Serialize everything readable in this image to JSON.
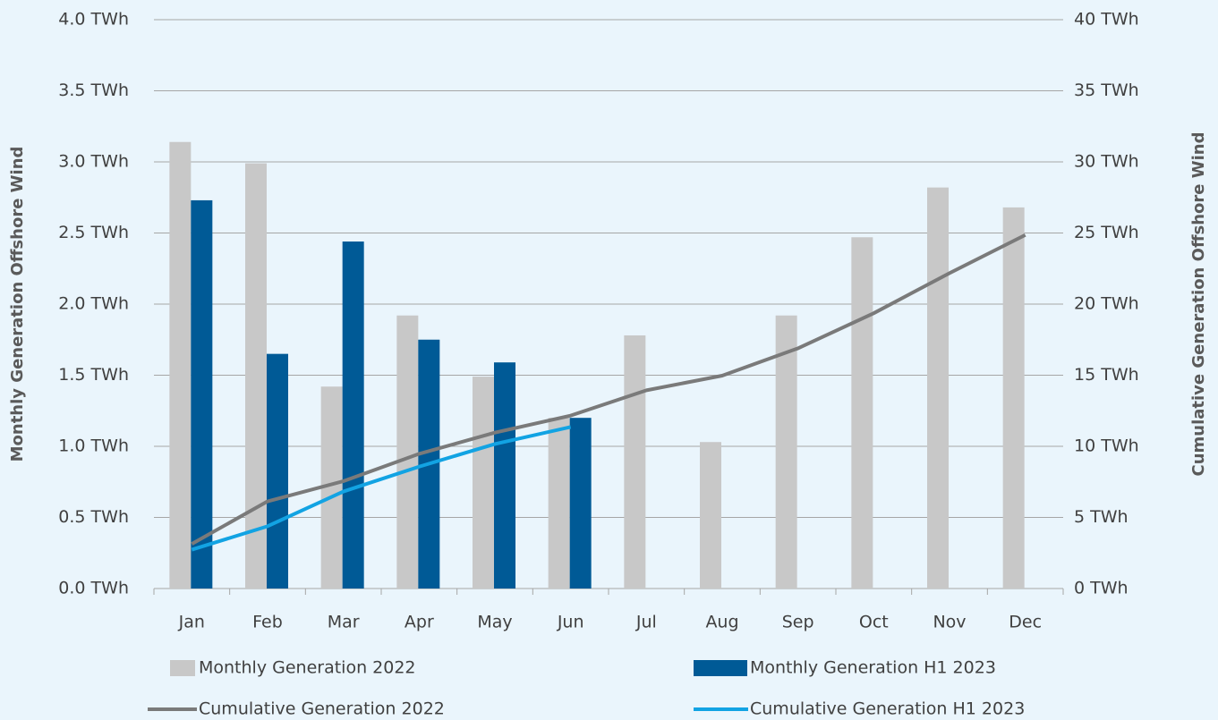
{
  "chart_data": {
    "type": "combo",
    "categories": [
      "Jan",
      "Feb",
      "Mar",
      "Apr",
      "May",
      "Jun",
      "Jul",
      "Aug",
      "Sep",
      "Oct",
      "Nov",
      "Dec"
    ],
    "ylabel": "Monthly Generation Offshore Wind",
    "y2label": "Cumulative Generation Offshore Wind",
    "ylim": [
      0,
      4
    ],
    "yticks": [
      {
        "value": 0,
        "label": "0.0 TWh"
      },
      {
        "value": 0.5,
        "label": "0.5 TWh"
      },
      {
        "value": 1,
        "label": "1.0 TWh"
      },
      {
        "value": 1.5,
        "label": "1.5 TWh"
      },
      {
        "value": 2,
        "label": "2.0 TWh"
      },
      {
        "value": 2.5,
        "label": "2.5 TWh"
      },
      {
        "value": 3,
        "label": "3.0 TWh"
      },
      {
        "value": 3.5,
        "label": "3.5 TWh"
      },
      {
        "value": 4,
        "label": "4.0 TWh"
      }
    ],
    "y2lim": [
      0,
      40
    ],
    "y2ticks": [
      {
        "value": 0,
        "label": "0 TWh"
      },
      {
        "value": 5,
        "label": "5 TWh"
      },
      {
        "value": 10,
        "label": "10 TWh"
      },
      {
        "value": 15,
        "label": "15 TWh"
      },
      {
        "value": 20,
        "label": "20 TWh"
      },
      {
        "value": 25,
        "label": "25 TWh"
      },
      {
        "value": 30,
        "label": "30 TWh"
      },
      {
        "value": 35,
        "label": "35 TWh"
      },
      {
        "value": 40,
        "label": "40 TWh"
      }
    ],
    "grid": true,
    "legend": "bottom",
    "series": [
      {
        "name": "Monthly Generation 2022",
        "type": "bar",
        "color": "#c8c8c8",
        "values": [
          3.14,
          2.99,
          1.42,
          1.92,
          1.49,
          1.2,
          1.78,
          1.03,
          1.92,
          2.47,
          2.82,
          2.68
        ]
      },
      {
        "name": "Monthly Generation H1 2023",
        "type": "bar",
        "color": "#005a96",
        "values": [
          2.73,
          1.65,
          2.44,
          1.75,
          1.59,
          1.2,
          null,
          null,
          null,
          null,
          null,
          null
        ]
      },
      {
        "name": "Cumulative Generation 2022",
        "type": "line",
        "axis": "y2",
        "color": "#7a7a7a",
        "values": [
          3.14,
          6.13,
          7.55,
          9.47,
          10.96,
          12.16,
          13.94,
          14.97,
          16.89,
          19.36,
          22.18,
          24.86
        ]
      },
      {
        "name": "Cumulative Generation H1 2023",
        "type": "line",
        "axis": "y2",
        "color": "#12a3e3",
        "values": [
          2.73,
          4.38,
          6.82,
          8.57,
          10.16,
          11.36,
          null,
          null,
          null,
          null,
          null,
          null
        ]
      }
    ]
  }
}
